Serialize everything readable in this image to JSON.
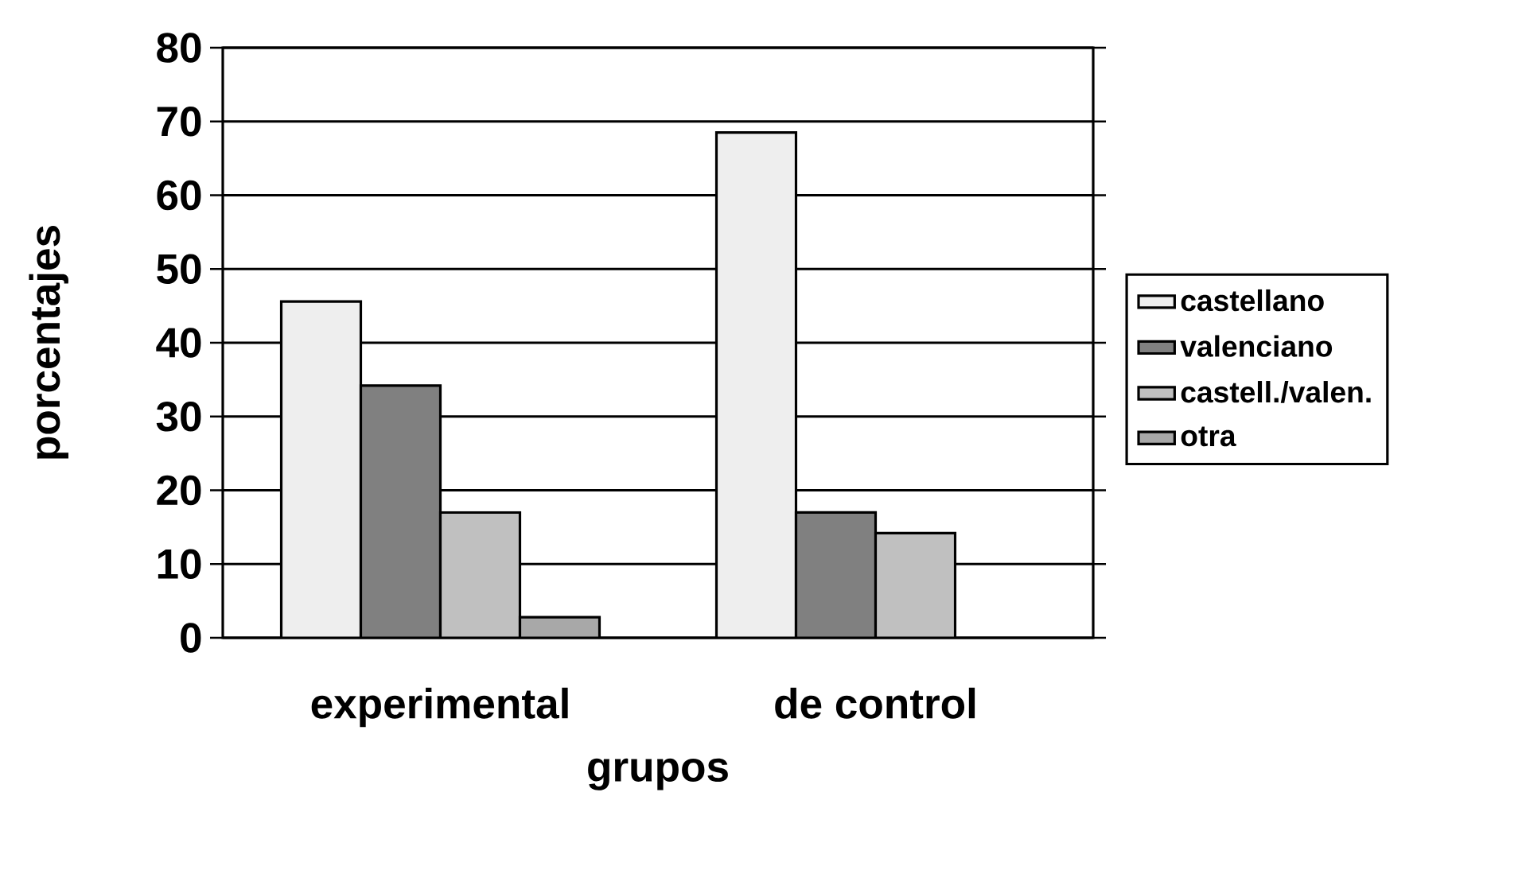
{
  "chart_data": {
    "type": "bar",
    "xlabel": "grupos",
    "ylabel": "porcentajes",
    "categories": [
      "experimental",
      "de control"
    ],
    "series": [
      {
        "name": "castellano",
        "color": "#eeeeee",
        "values": [
          45.6,
          68.5
        ]
      },
      {
        "name": "valenciano",
        "color": "#808080",
        "values": [
          34.2,
          17.0
        ]
      },
      {
        "name": "castell./valen.",
        "color": "#c0c0c0",
        "values": [
          17.0,
          14.2
        ]
      },
      {
        "name": "otra",
        "color": "#a8a8a8",
        "values": [
          2.8,
          null
        ]
      }
    ],
    "ylim": [
      0,
      80
    ],
    "yticks": [
      0,
      10,
      20,
      30,
      40,
      50,
      60,
      70,
      80
    ],
    "grid": "y",
    "legend": "right"
  }
}
